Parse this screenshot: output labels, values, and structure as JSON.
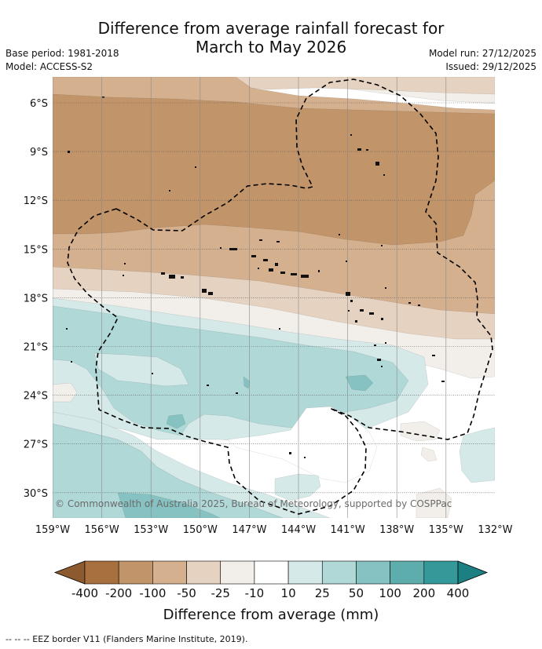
{
  "title": {
    "line1": "Difference from average rainfall forecast for",
    "line2": "March to May 2026"
  },
  "meta": {
    "base_period": "Base period: 1981-2018",
    "model": "Model: ACCESS-S2",
    "model_run": "Model run: 27/12/2025",
    "issued": "Issued: 29/12/2025"
  },
  "map": {
    "lat_labels": [
      "6°S",
      "9°S",
      "12°S",
      "15°S",
      "18°S",
      "21°S",
      "24°S",
      "27°S",
      "30°S"
    ],
    "lon_labels": [
      "159°W",
      "156°W",
      "153°W",
      "150°W",
      "147°W",
      "144°W",
      "141°W",
      "138°W",
      "135°W",
      "132°W"
    ],
    "copyright": "© Commonwealth of Australia 2025, Bureau of Meteorology, supported by COSPPac",
    "colors": {
      "neg400": "#a8703e",
      "neg200": "#c29469",
      "neg100": "#d4b08f",
      "neg50": "#e6d2c0",
      "neg25": "#f2eee9",
      "neutral": "#ffffff",
      "pos10": "#d4e9e8",
      "pos25": "#afd8d7",
      "pos50": "#86c2c2",
      "pos100": "#5dadad",
      "pos200": "#35999a",
      "pos400": "#1c8082"
    }
  },
  "colorbar": {
    "ticks": [
      "-400",
      "-200",
      "-100",
      "-50",
      "-25",
      "-10",
      "10",
      "25",
      "50",
      "100",
      "200",
      "400"
    ],
    "label": "Difference from average (mm)"
  },
  "footnote": "--  --  -- EEZ border V11 (Flanders Marine Institute, 2019)."
}
